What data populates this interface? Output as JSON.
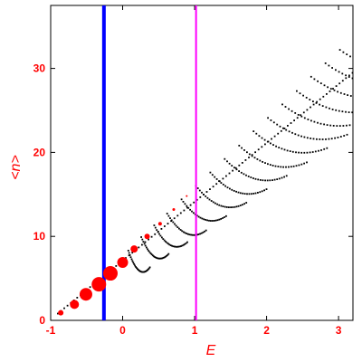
{
  "chart_data": {
    "type": "scatter",
    "xlabel": "E",
    "ylabel": "<n>",
    "xlim": [
      -1.0,
      3.2
    ],
    "ylim": [
      0,
      37.5
    ],
    "x_ticks": [
      -1,
      0,
      1,
      2,
      3
    ],
    "y_ticks": [
      0,
      10,
      20,
      30
    ],
    "grid": false,
    "colors": {
      "axis": "#ff0000",
      "labels": "#ff0000",
      "points": "#000000",
      "markers": "#ff0000",
      "vline_blue": "#0000ff",
      "vline_magenta": "#ff00ff"
    },
    "vertical_lines": [
      {
        "x": -0.26,
        "color": "#0000ff"
      },
      {
        "x": 1.02,
        "color": "#ff00ff"
      }
    ],
    "red_markers": [
      {
        "x": -0.86,
        "y": 0.9,
        "size": 3
      },
      {
        "x": -0.67,
        "y": 1.9,
        "size": 5
      },
      {
        "x": -0.51,
        "y": 3.1,
        "size": 7
      },
      {
        "x": -0.33,
        "y": 4.3,
        "size": 8
      },
      {
        "x": -0.17,
        "y": 5.6,
        "size": 8
      },
      {
        "x": 0.0,
        "y": 6.9,
        "size": 6
      },
      {
        "x": 0.16,
        "y": 8.5,
        "size": 4
      },
      {
        "x": 0.34,
        "y": 10.0,
        "size": 3
      },
      {
        "x": 0.52,
        "y": 11.5,
        "size": 2
      },
      {
        "x": 0.71,
        "y": 13.2,
        "size": 1.5
      },
      {
        "x": 0.89,
        "y": 14.8,
        "size": 1
      }
    ],
    "series_generator": {
      "lower_envelope": {
        "x_start": -0.9,
        "x_end": 3.2,
        "y_at_start": 0.8,
        "slope": 7.1
      },
      "families": [
        {
          "x0": 0.08,
          "y0": 7.1,
          "len": 0.3
        },
        {
          "x0": 0.26,
          "y0": 8.7,
          "len": 0.38
        },
        {
          "x0": 0.44,
          "y0": 10.1,
          "len": 0.46
        },
        {
          "x0": 0.62,
          "y0": 11.5,
          "len": 0.54
        },
        {
          "x0": 0.82,
          "y0": 13.2,
          "len": 0.62
        },
        {
          "x0": 1.02,
          "y0": 14.8,
          "len": 0.7
        },
        {
          "x0": 1.22,
          "y0": 16.4,
          "len": 0.78
        },
        {
          "x0": 1.42,
          "y0": 18.0,
          "len": 0.86
        },
        {
          "x0": 1.62,
          "y0": 19.6,
          "len": 0.94
        },
        {
          "x0": 1.82,
          "y0": 21.3,
          "len": 1.02
        },
        {
          "x0": 2.02,
          "y0": 22.9,
          "len": 1.1
        },
        {
          "x0": 2.22,
          "y0": 24.5,
          "len": 1.16
        },
        {
          "x0": 2.42,
          "y0": 26.1,
          "len": 1.18
        },
        {
          "x0": 2.62,
          "y0": 27.8,
          "len": 1.2
        },
        {
          "x0": 2.82,
          "y0": 29.4,
          "len": 1.22
        },
        {
          "x0": 3.02,
          "y0": 31.0,
          "len": 1.24
        },
        {
          "x0": 3.22,
          "y0": 32.6,
          "len": 1.26
        },
        {
          "x0": 3.42,
          "y0": 34.2,
          "len": 1.28
        }
      ]
    }
  }
}
